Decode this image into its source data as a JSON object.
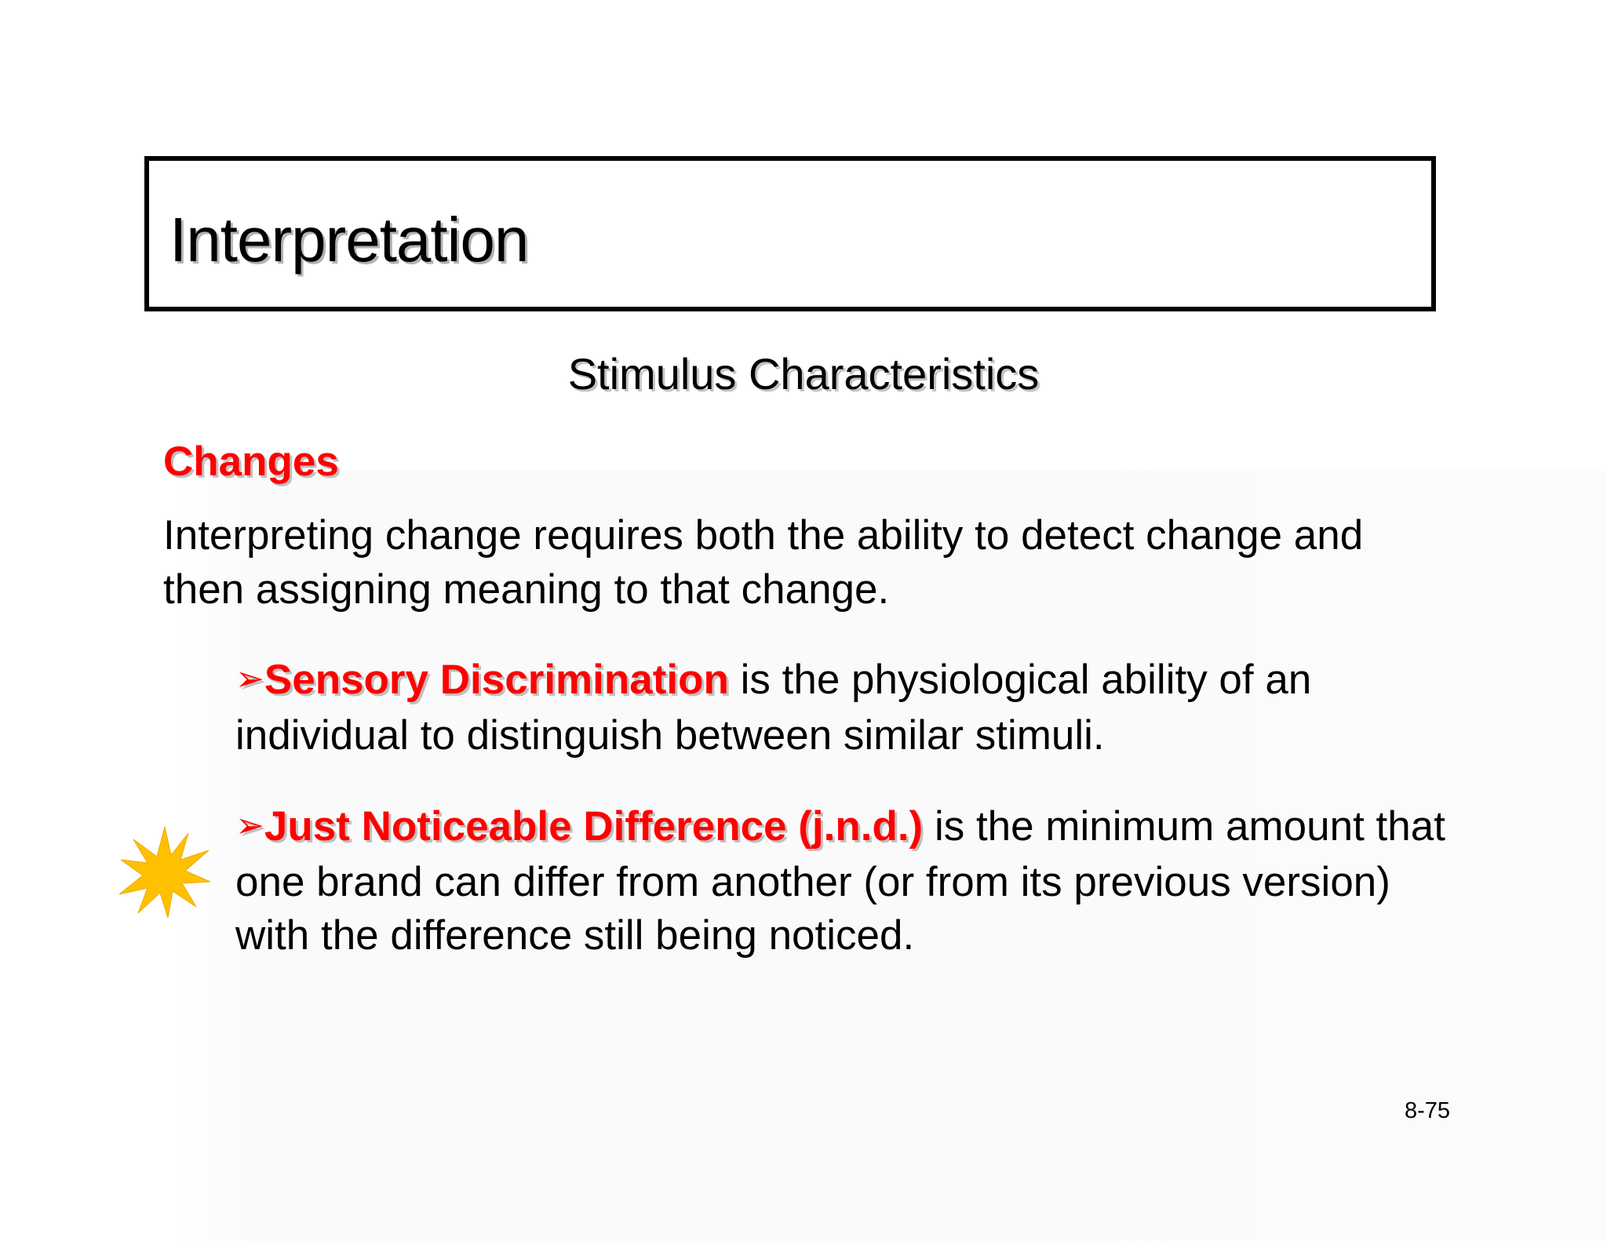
{
  "slide": {
    "title": "Interpretation",
    "subtitle": "Stimulus Characteristics",
    "section_heading": "Changes",
    "intro": "Interpreting change requires both the ability to detect change and then assigning meaning to that change.",
    "bullets": [
      {
        "marker": "➢",
        "term": "Sensory Discrimination",
        "text": " is the physiological ability of an individual to distinguish between similar stimuli."
      },
      {
        "marker": "➢",
        "term": "Just Noticeable Difference (j.n.d.)",
        "text": " is the minimum amount that one brand can differ from another (or from its previous version) with the difference still being noticed."
      }
    ],
    "page_number": "8-75"
  },
  "colors": {
    "accent": "#ff0000",
    "text": "#000000",
    "starburst": "#ffc000"
  },
  "icons": {
    "starburst": "starburst-icon"
  }
}
